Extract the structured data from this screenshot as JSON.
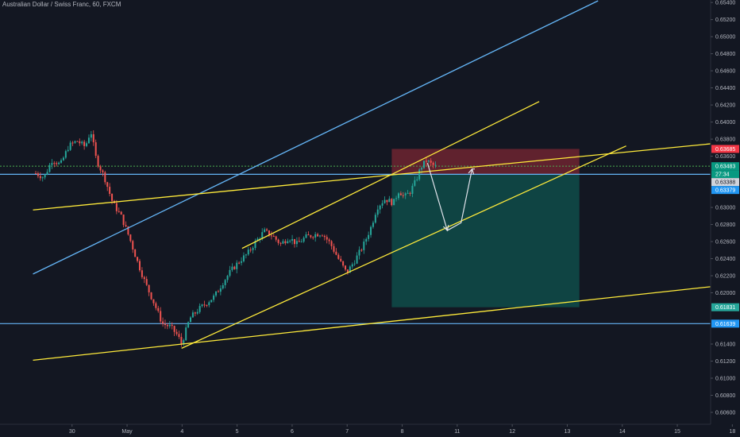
{
  "header": {
    "title": "Australian Dollar / Swiss Franc, 60, FXCM"
  },
  "chart_data": {
    "type": "candlestick",
    "instrument": "Australian Dollar / Swiss Franc",
    "interval": "60",
    "source": "FXCM",
    "ylim": [
      0.6046,
      0.6542
    ],
    "y_ticks": [
      "0.65400",
      "0.65200",
      "0.65000",
      "0.64800",
      "0.64600",
      "0.64400",
      "0.64200",
      "0.64000",
      "0.63800",
      "0.63600",
      "0.63000",
      "0.62800",
      "0.62600",
      "0.62400",
      "0.62200",
      "0.62000",
      "0.61400",
      "0.61200",
      "0.61000",
      "0.60800",
      "0.60600"
    ],
    "x_ticks": [
      {
        "label": "30",
        "x": 0.66
      },
      {
        "label": "May",
        "x": 1.66
      },
      {
        "label": "4",
        "x": 2.66
      },
      {
        "label": "5",
        "x": 3.66
      },
      {
        "label": "6",
        "x": 4.66
      },
      {
        "label": "7",
        "x": 5.66
      },
      {
        "label": "8",
        "x": 6.66
      },
      {
        "label": "11",
        "x": 7.66
      },
      {
        "label": "12",
        "x": 8.66
      },
      {
        "label": "13",
        "x": 9.66
      },
      {
        "label": "14",
        "x": 10.66
      },
      {
        "label": "15",
        "x": 11.66
      },
      {
        "label": "18",
        "x": 12.66
      }
    ],
    "price_path": [
      [
        0.0,
        0.634
      ],
      [
        0.15,
        0.6335
      ],
      [
        0.3,
        0.6356
      ],
      [
        0.45,
        0.635
      ],
      [
        0.6,
        0.6372
      ],
      [
        0.75,
        0.6378
      ],
      [
        0.9,
        0.6371
      ],
      [
        1.0,
        0.639
      ],
      [
        1.1,
        0.6356
      ],
      [
        1.25,
        0.6335
      ],
      [
        1.4,
        0.6305
      ],
      [
        1.55,
        0.629
      ],
      [
        1.7,
        0.6265
      ],
      [
        1.85,
        0.6236
      ],
      [
        2.0,
        0.621
      ],
      [
        2.15,
        0.6188
      ],
      [
        2.3,
        0.6164
      ],
      [
        2.45,
        0.616
      ],
      [
        2.58,
        0.615
      ],
      [
        2.65,
        0.614
      ],
      [
        2.8,
        0.617
      ],
      [
        2.95,
        0.618
      ],
      [
        3.1,
        0.6188
      ],
      [
        3.25,
        0.6196
      ],
      [
        3.4,
        0.6212
      ],
      [
        3.55,
        0.6226
      ],
      [
        3.7,
        0.6237
      ],
      [
        3.85,
        0.6246
      ],
      [
        4.0,
        0.626
      ],
      [
        4.15,
        0.6272
      ],
      [
        4.3,
        0.6267
      ],
      [
        4.45,
        0.6257
      ],
      [
        4.6,
        0.6265
      ],
      [
        4.75,
        0.6257
      ],
      [
        4.9,
        0.6265
      ],
      [
        5.05,
        0.6268
      ],
      [
        5.2,
        0.627
      ],
      [
        5.35,
        0.6258
      ],
      [
        5.5,
        0.624
      ],
      [
        5.65,
        0.6223
      ],
      [
        5.8,
        0.6238
      ],
      [
        5.95,
        0.6255
      ],
      [
        6.1,
        0.6278
      ],
      [
        6.2,
        0.63
      ],
      [
        6.35,
        0.631
      ],
      [
        6.5,
        0.6305
      ],
      [
        6.6,
        0.632
      ],
      [
        6.7,
        0.6312
      ],
      [
        6.8,
        0.6318
      ],
      [
        6.9,
        0.633
      ],
      [
        7.0,
        0.6347
      ],
      [
        7.1,
        0.6355
      ],
      [
        7.2,
        0.635
      ],
      [
        7.3,
        0.6347
      ]
    ],
    "horizontal_lines": [
      0.63388,
      0.61639
    ],
    "dotted_line": 0.63483,
    "trend_lines": [
      {
        "color": "#64b5f6",
        "from": [
          -0.05,
          0.6222
        ],
        "to": [
          10.22,
          0.6542
        ]
      },
      {
        "color": "#ffeb3b",
        "from": [
          -0.05,
          0.6297
        ],
        "to": [
          12.98,
          0.6379
        ]
      },
      {
        "color": "#ffeb3b",
        "from": [
          3.75,
          0.6252
        ],
        "to": [
          9.15,
          0.6424
        ]
      },
      {
        "color": "#ffeb3b",
        "from": [
          2.65,
          0.6135
        ],
        "to": [
          10.73,
          0.6372
        ]
      },
      {
        "color": "#ffeb3b",
        "from": [
          -0.05,
          0.6121
        ],
        "to": [
          12.53,
          0.6209
        ]
      }
    ],
    "position": {
      "x_start": 6.47,
      "x_end": 9.88,
      "stop": 0.63685,
      "entry": 0.63388,
      "target": 0.61831
    },
    "projection_path": [
      [
        7.12,
        0.6352
      ],
      [
        7.48,
        0.6273
      ],
      [
        7.73,
        0.6282
      ],
      [
        7.93,
        0.6345
      ],
      [
        7.98,
        0.6345
      ]
    ],
    "price_labels": [
      {
        "text": "0.63685",
        "value": 0.63685,
        "color": "#f23645"
      },
      {
        "text": "0.63483",
        "value": 0.63483,
        "color": "#089981"
      },
      {
        "text": "27:34",
        "value": 0.63442,
        "color": "#089981"
      },
      {
        "text": "0.63388",
        "value": 0.63388,
        "color": "#f23645",
        "fg": "#131722",
        "bg": "#d1d4dc"
      },
      {
        "text": "0.63379",
        "value": 0.63379,
        "color": "#2196f3"
      },
      {
        "text": "0.61831",
        "value": 0.61831,
        "color": "#26a69a"
      },
      {
        "text": "0.61639",
        "value": 0.61639,
        "color": "#2196f3"
      }
    ]
  }
}
